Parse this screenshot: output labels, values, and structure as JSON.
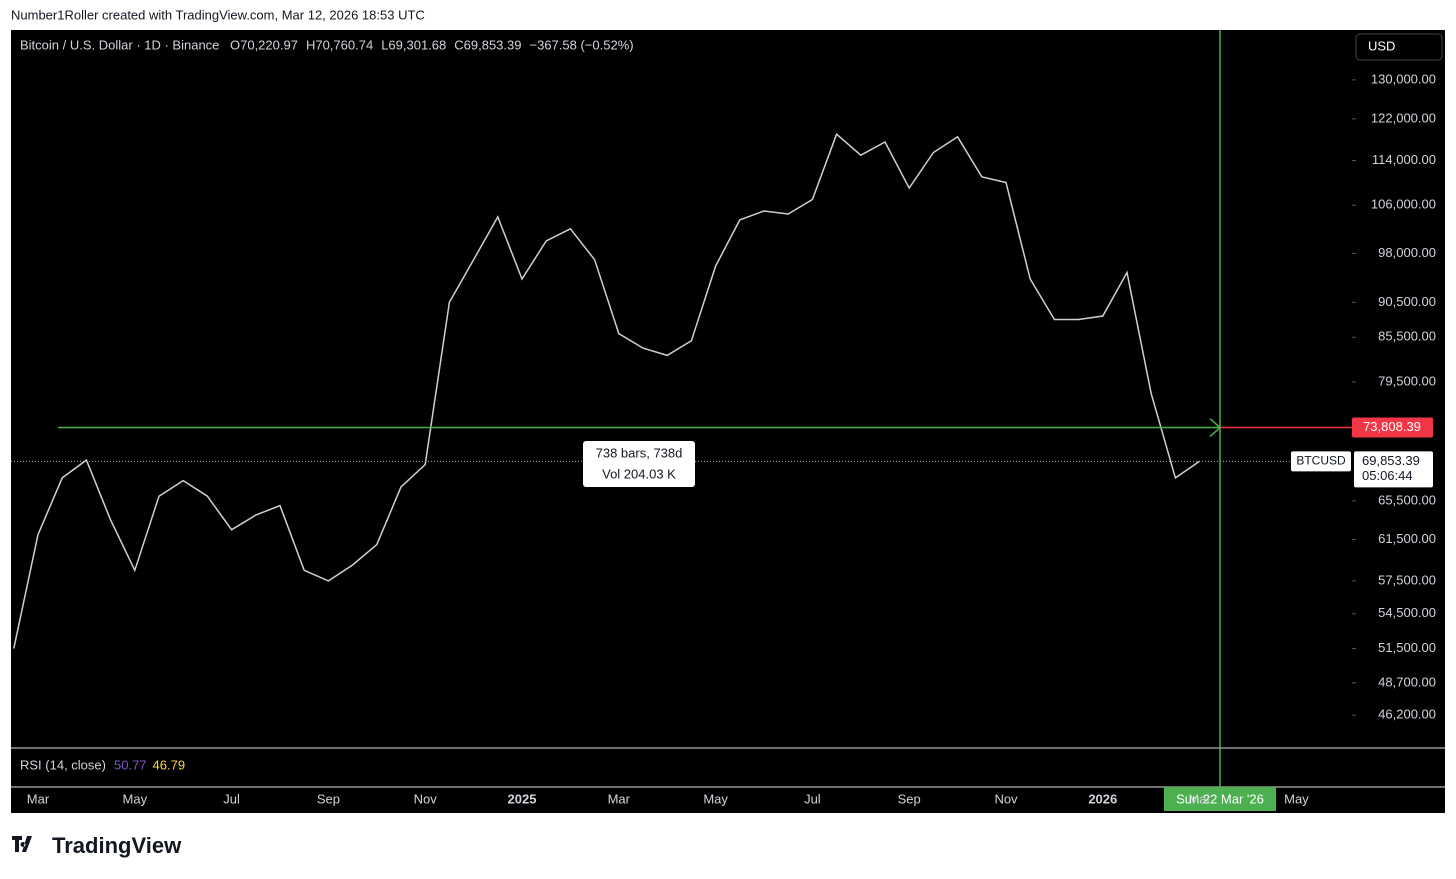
{
  "header": {
    "credit": "Number1Roller created with TradingView.com, Mar 12, 2026 18:53 UTC"
  },
  "footer": {
    "brand": "TradingView"
  },
  "chart_data": {
    "type": "line",
    "title": "Bitcoin / U.S. Dollar · 1D · Binance",
    "ohlc_labels": [
      "O70,220.97",
      "H70,760.74",
      "L69,301.68",
      "C69,853.39",
      "−367.58 (−0.52%)"
    ],
    "currency": "USD",
    "log_scale": true,
    "categories": [
      null,
      "Mar",
      null,
      null,
      null,
      "May",
      null,
      null,
      null,
      "Jul",
      null,
      null,
      null,
      "Sep",
      null,
      null,
      null,
      "Nov",
      null,
      null,
      null,
      "2025",
      null,
      null,
      null,
      "Mar",
      null,
      null,
      null,
      "May",
      null,
      null,
      null,
      "Jul",
      null,
      null,
      null,
      "Sep",
      null,
      null,
      null,
      "Nov",
      null,
      null,
      null,
      "2026",
      null,
      null,
      null,
      "Mar",
      null,
      null,
      null,
      "May",
      null
    ],
    "series": [
      {
        "name": "BTCUSD",
        "color": "#d0d0d0",
        "values": [
          51500,
          62000,
          68000,
          70000,
          63500,
          58500,
          66000,
          67700,
          66000,
          62500,
          64000,
          65000,
          58500,
          57500,
          59000,
          61000,
          67000,
          69500,
          90500,
          97000,
          104000,
          94000,
          100000,
          102000,
          97000,
          86000,
          84000,
          83000,
          85000,
          96000,
          103500,
          105000,
          104500,
          107000,
          119000,
          115000,
          117500,
          109000,
          115500,
          118500,
          111000,
          110000,
          94000,
          88000,
          88000,
          88500,
          95000,
          78000,
          68000,
          69853.39,
          null,
          null,
          null,
          null,
          null
        ]
      }
    ],
    "ylim": [
      43800,
      141000
    ],
    "yticks": [
      {
        "value": 130000,
        "label": "130,000.00"
      },
      {
        "value": 122000,
        "label": "122,000.00"
      },
      {
        "value": 114000,
        "label": "114,000.00"
      },
      {
        "value": 106000,
        "label": "106,000.00"
      },
      {
        "value": 98000,
        "label": "98,000.00"
      },
      {
        "value": 90500,
        "label": "90,500.00"
      },
      {
        "value": 85500,
        "label": "85,500.00"
      },
      {
        "value": 79500,
        "label": "79,500.00"
      },
      {
        "value": 65500,
        "label": "65,500.00"
      },
      {
        "value": 61500,
        "label": "61,500.00"
      },
      {
        "value": 57500,
        "label": "57,500.00"
      },
      {
        "value": 54500,
        "label": "54,500.00"
      },
      {
        "value": 51500,
        "label": "51,500.00"
      },
      {
        "value": 48700,
        "label": "48,700.00"
      },
      {
        "value": 46200,
        "label": "46,200.00"
      }
    ],
    "level": {
      "value": 73808.39,
      "label": "73,808.39",
      "color": "#f23645",
      "line_color": "#4caf50"
    },
    "last_price": {
      "value": 69853.39,
      "label": "69,853.39",
      "symbol": "BTCUSD",
      "countdown": "05:06:44"
    },
    "measure_labels": [
      "738 bars, 738d",
      "Vol 204.03 K"
    ],
    "crosshair_label": "Sun 22 Mar '26",
    "rsi": {
      "label": "RSI (14, close)",
      "values": [
        {
          "value": 50.77,
          "color": "#7e57c2"
        },
        {
          "value": 46.79,
          "color": "#fdd835"
        }
      ]
    }
  }
}
